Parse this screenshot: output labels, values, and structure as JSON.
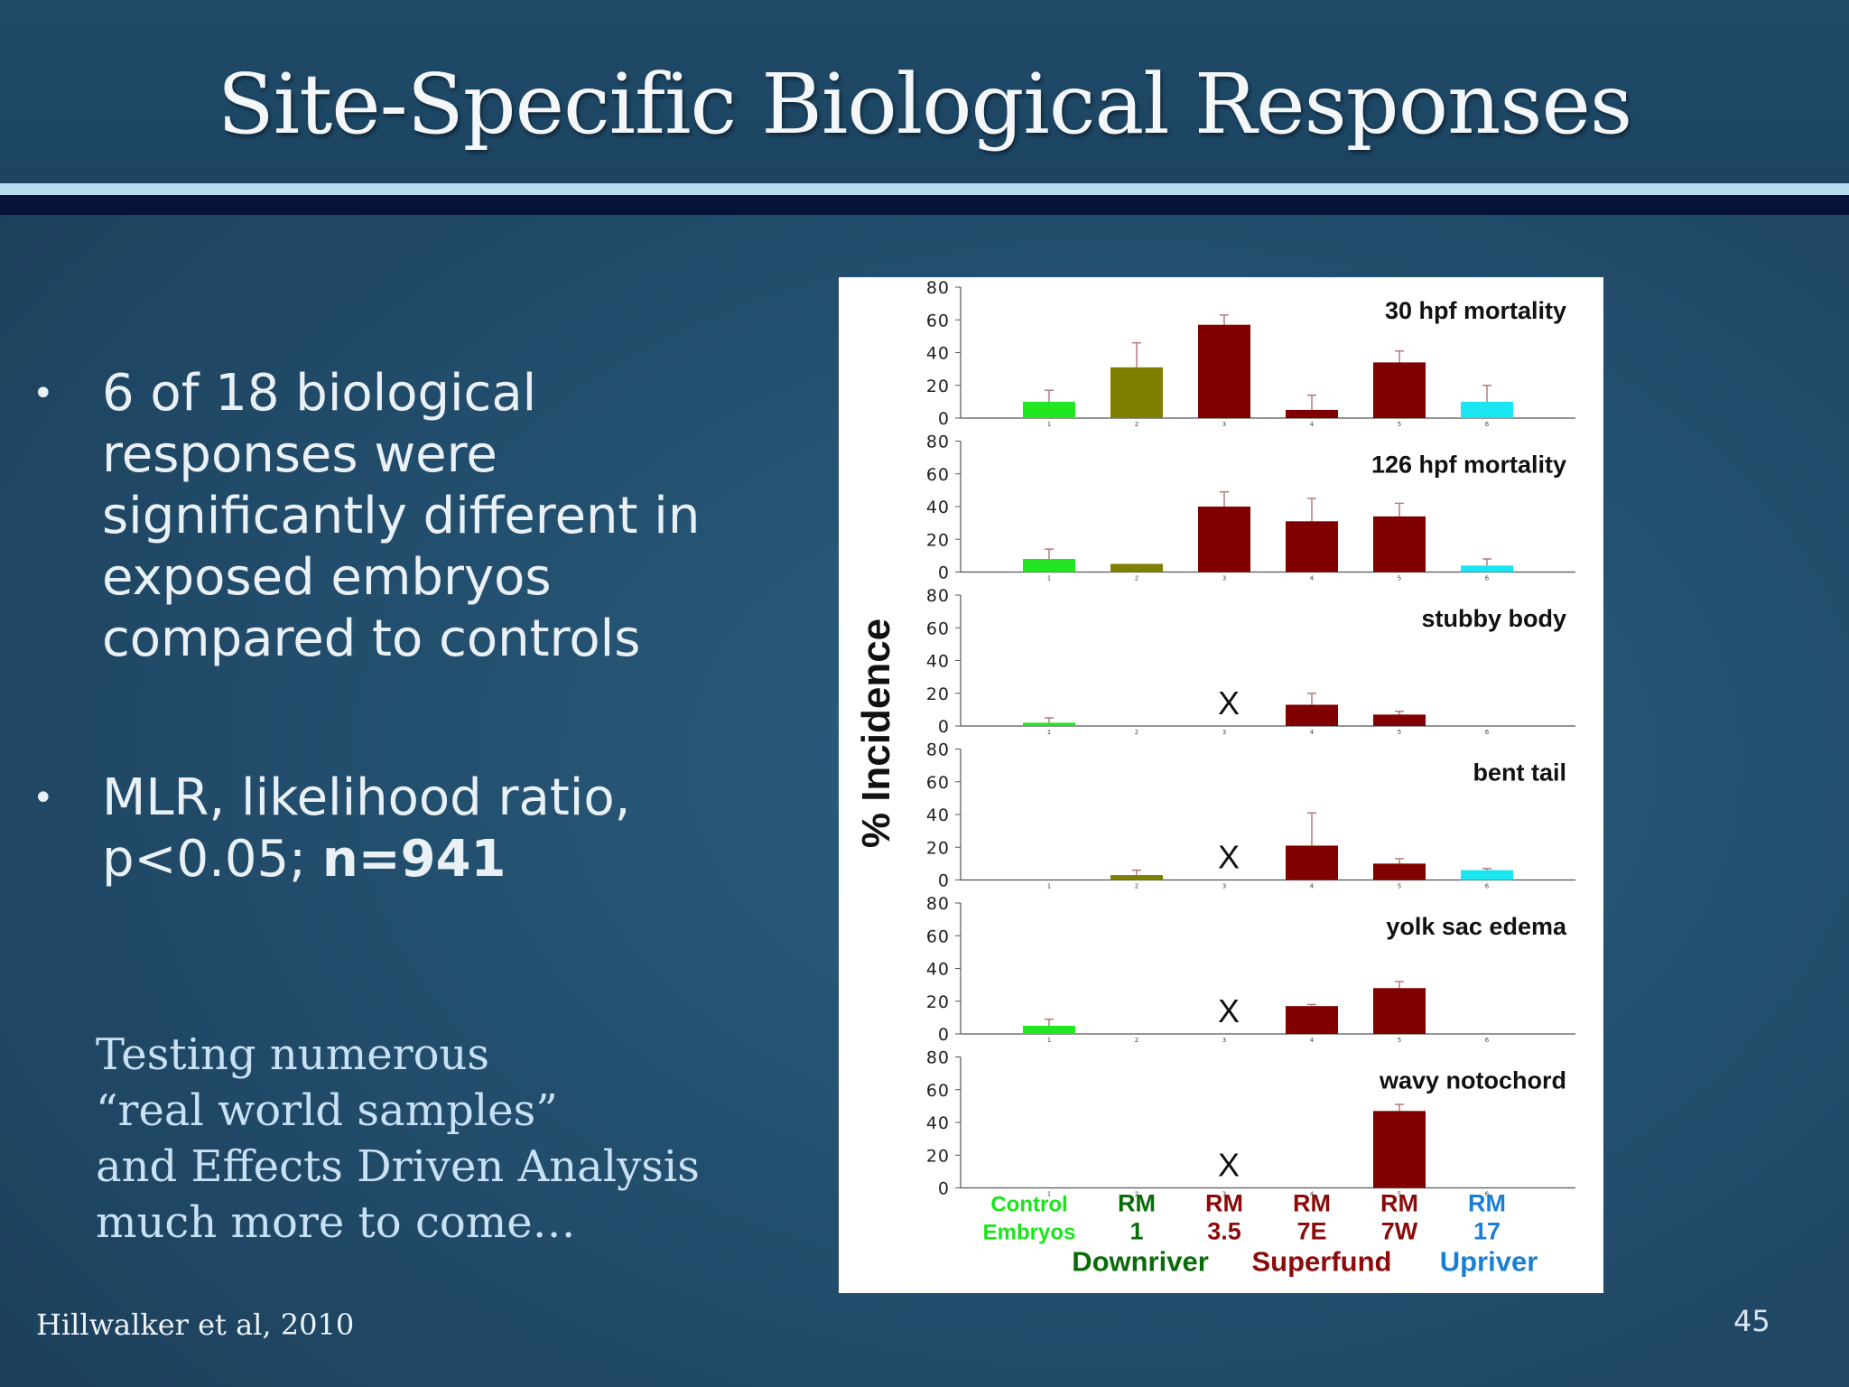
{
  "slide": {
    "title": "Site-Specific Biological Responses",
    "bullets": [
      {
        "parts": [
          {
            "text": "6 of 18 biological responses were significantly different in exposed embryos compared to controls",
            "bold": false
          }
        ]
      },
      {
        "parts": [
          {
            "text": "MLR, likelihood ratio, p<0.05; ",
            "bold": false
          },
          {
            "text": "n=941",
            "bold": true
          }
        ]
      }
    ],
    "testing_lines": [
      "Testing numerous",
      "“real world samples”",
      "and Effects Driven Analysis",
      "much more to come…"
    ],
    "citation": "Hillwalker et al, 2010",
    "page_number": "45"
  },
  "chart_data": {
    "type": "bar",
    "ylabel": "% Incidence",
    "ylim": [
      0,
      80
    ],
    "yticks": [
      0,
      20,
      40,
      60,
      80
    ],
    "tick_labels": [
      "1",
      "2",
      "3",
      "4",
      "5",
      "6"
    ],
    "categories": [
      {
        "lines": [
          "Control",
          "Embryos"
        ],
        "color": "#19e619"
      },
      {
        "lines": [
          "RM",
          "1"
        ],
        "color": "#0a6b0a"
      },
      {
        "lines": [
          "RM",
          "3.5"
        ],
        "color": "#8b0a0a"
      },
      {
        "lines": [
          "RM",
          "7E"
        ],
        "color": "#8b0a0a"
      },
      {
        "lines": [
          "RM",
          "7W"
        ],
        "color": "#8b0a0a"
      },
      {
        "lines": [
          "RM",
          "17"
        ],
        "color": "#1a7fd4"
      }
    ],
    "groups": [
      {
        "label": "Downriver",
        "color": "#0a6b0a"
      },
      {
        "label": "Superfund",
        "color": "#8b0a0a"
      },
      {
        "label": "Upriver",
        "color": "#1a7fd4"
      }
    ],
    "bar_colors": [
      "#22e622",
      "#7f7f00",
      "#800000",
      "#800000",
      "#800000",
      "#19e6f0"
    ],
    "marker": "X",
    "panels": [
      {
        "name": "30 hpf mortality",
        "values": [
          10,
          31,
          57,
          5,
          34,
          10
        ],
        "errors": [
          7,
          15,
          6,
          9,
          7,
          10
        ],
        "missing": []
      },
      {
        "name": "126 hpf mortality",
        "values": [
          8,
          5,
          40,
          31,
          34,
          4
        ],
        "errors": [
          6,
          0,
          9,
          14,
          8,
          4
        ],
        "missing": []
      },
      {
        "name": "stubby body",
        "values": [
          2,
          0,
          null,
          13,
          7,
          0
        ],
        "errors": [
          3,
          0,
          0,
          7,
          2,
          0
        ],
        "missing": [
          2
        ]
      },
      {
        "name": "bent tail",
        "values": [
          0,
          3,
          null,
          21,
          10,
          6
        ],
        "errors": [
          0,
          3,
          0,
          20,
          3,
          1
        ],
        "missing": [
          2
        ]
      },
      {
        "name": "yolk sac edema",
        "values": [
          5,
          0,
          null,
          17,
          28,
          0
        ],
        "errors": [
          4,
          0,
          0,
          1,
          4,
          0
        ],
        "missing": [
          2
        ]
      },
      {
        "name": "wavy notochord",
        "values": [
          0,
          0,
          null,
          0,
          47,
          0
        ],
        "errors": [
          0,
          0,
          0,
          0,
          4,
          0
        ],
        "missing": [
          2
        ]
      }
    ]
  }
}
